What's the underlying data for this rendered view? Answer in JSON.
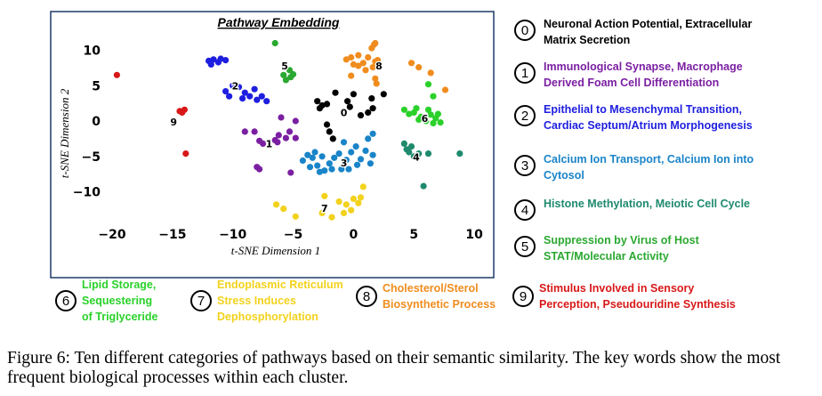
{
  "chart_data": {
    "type": "scatter",
    "title": "Pathway Embedding",
    "xlabel": "t-SNE Dimension 1",
    "ylabel": "t-SNE Dimension 2",
    "xlim": [
      -21,
      11
    ],
    "ylim": [
      -14,
      12
    ],
    "xticks": [
      -20,
      -15,
      -10,
      -5,
      0,
      5,
      10
    ],
    "yticks": [
      10,
      5,
      0,
      -5,
      -10
    ],
    "grid": false,
    "legend_placement": "right and bottom",
    "series": [
      {
        "id": 0,
        "color": "#000000",
        "label": {
          "text": "0",
          "x": -0.8,
          "y": 1.2
        },
        "points": [
          [
            -3.0,
            2.8
          ],
          [
            -2.6,
            2.2
          ],
          [
            -2.2,
            2.4
          ],
          [
            -2.8,
            1.8
          ],
          [
            -1.5,
            4.0
          ],
          [
            0.0,
            3.8
          ],
          [
            1.5,
            3.2
          ],
          [
            2.5,
            3.8
          ],
          [
            -0.5,
            2.8
          ],
          [
            1.2,
            1.2
          ],
          [
            1.6,
            1.8
          ],
          [
            0.6,
            0.8
          ],
          [
            -0.3,
            2.0
          ],
          [
            -2.0,
            -1.5
          ],
          [
            -2.2,
            -0.5
          ],
          [
            -1.7,
            -2.5
          ]
        ]
      },
      {
        "id": 1,
        "color": "#7b1fa2",
        "label": {
          "text": "1",
          "x": -7.0,
          "y": -3.2
        },
        "points": [
          [
            -9.0,
            -1.5
          ],
          [
            -8.2,
            -1.5
          ],
          [
            -7.8,
            -2.8
          ],
          [
            -7.5,
            -3.2
          ],
          [
            -6.5,
            -2.7
          ],
          [
            -6.2,
            -2.0
          ],
          [
            -5.6,
            -2.4
          ],
          [
            -4.8,
            -2.4
          ],
          [
            -5.3,
            -1.5
          ],
          [
            -6.0,
            0.5
          ],
          [
            -4.8,
            0.0
          ],
          [
            -8.0,
            -6.5
          ],
          [
            -7.8,
            -6.8
          ],
          [
            -5.2,
            -7.3
          ],
          [
            -6.3,
            -3.0
          ]
        ]
      },
      {
        "id": 2,
        "color": "#1e1ee0",
        "label": {
          "text": "2",
          "x": -9.8,
          "y": 5.0
        },
        "points": [
          [
            -12.0,
            8.5
          ],
          [
            -11.6,
            8.7
          ],
          [
            -11.2,
            8.3
          ],
          [
            -11.8,
            8.0
          ],
          [
            -11.0,
            8.8
          ],
          [
            -10.6,
            8.6
          ],
          [
            -10.0,
            5.0
          ],
          [
            -9.5,
            4.8
          ],
          [
            -9.0,
            4.0
          ],
          [
            -8.6,
            3.5
          ],
          [
            -8.0,
            3.0
          ],
          [
            -7.6,
            3.5
          ],
          [
            -8.2,
            4.5
          ],
          [
            -9.2,
            3.2
          ],
          [
            -10.6,
            4.2
          ],
          [
            -10.3,
            3.5
          ],
          [
            -7.2,
            2.8
          ]
        ]
      },
      {
        "id": 3,
        "color": "#1a84c8",
        "label": {
          "text": "3",
          "x": -0.8,
          "y": -5.9
        },
        "points": [
          [
            -4.2,
            -5.6
          ],
          [
            -3.6,
            -6.5
          ],
          [
            -3.4,
            -5.2
          ],
          [
            -3.0,
            -6.3
          ],
          [
            -2.6,
            -5.0
          ],
          [
            -2.4,
            -7.0
          ],
          [
            -2.0,
            -6.0
          ],
          [
            -1.6,
            -5.2
          ],
          [
            -1.2,
            -4.6
          ],
          [
            -1.0,
            -6.8
          ],
          [
            -0.6,
            -5.5
          ],
          [
            -0.2,
            -4.4
          ],
          [
            0.3,
            -6.2
          ],
          [
            0.6,
            -5.4
          ],
          [
            1.0,
            -4.2
          ],
          [
            1.4,
            -6.0
          ],
          [
            1.6,
            -4.8
          ],
          [
            1.2,
            -2.5
          ],
          [
            1.6,
            -1.8
          ],
          [
            -0.8,
            -3.0
          ],
          [
            -0.4,
            -6.8
          ],
          [
            0.2,
            -3.6
          ],
          [
            -2.8,
            -7.2
          ],
          [
            -3.8,
            -4.8
          ],
          [
            -3.2,
            -4.4
          ],
          [
            -1.8,
            -6.8
          ]
        ]
      },
      {
        "id": 4,
        "color": "#1f8a6e",
        "label": {
          "text": "4",
          "x": 5.2,
          "y": -5.1
        },
        "points": [
          [
            4.2,
            -3.2
          ],
          [
            4.4,
            -4.0
          ],
          [
            4.6,
            -4.4
          ],
          [
            4.8,
            -3.6
          ],
          [
            5.4,
            -4.6
          ],
          [
            5.0,
            -5.0
          ],
          [
            6.2,
            -4.6
          ],
          [
            8.8,
            -4.6
          ],
          [
            5.8,
            -9.2
          ]
        ]
      },
      {
        "id": 5,
        "color": "#2aa830",
        "label": {
          "text": "5",
          "x": -5.7,
          "y": 7.8
        },
        "points": [
          [
            -6.5,
            11.0
          ],
          [
            -5.8,
            6.5
          ],
          [
            -5.3,
            7.2
          ],
          [
            -5.2,
            6.2
          ],
          [
            -5.6,
            5.8
          ],
          [
            -5.0,
            6.6
          ]
        ]
      },
      {
        "id": 6,
        "color": "#2ad12a",
        "label": {
          "text": "6",
          "x": 5.9,
          "y": 0.4
        },
        "points": [
          [
            4.2,
            1.6
          ],
          [
            4.6,
            1.0
          ],
          [
            5.0,
            1.2
          ],
          [
            5.2,
            1.8
          ],
          [
            5.6,
            0.6
          ],
          [
            6.0,
            0.0
          ],
          [
            6.4,
            0.9
          ],
          [
            6.6,
            -0.3
          ],
          [
            6.8,
            0.4
          ],
          [
            7.2,
            -0.2
          ],
          [
            7.0,
            1.0
          ],
          [
            6.2,
            1.6
          ],
          [
            5.4,
            0.2
          ],
          [
            6.2,
            5.2
          ],
          [
            6.6,
            3.5
          ]
        ]
      },
      {
        "id": 7,
        "color": "#f2d21c",
        "label": {
          "text": "7",
          "x": -2.4,
          "y": -12.3
        },
        "points": [
          [
            -6.4,
            -11.8
          ],
          [
            -5.8,
            -12.4
          ],
          [
            -4.8,
            -13.5
          ],
          [
            -2.4,
            -10.6
          ],
          [
            -1.8,
            -13.6
          ],
          [
            -1.2,
            -11.4
          ],
          [
            -0.6,
            -11.8
          ],
          [
            -0.2,
            -12.6
          ],
          [
            0.4,
            -11.6
          ],
          [
            0.0,
            -11.0
          ],
          [
            0.6,
            -10.8
          ],
          [
            -0.8,
            -13.0
          ],
          [
            -2.6,
            -13.0
          ],
          [
            0.8,
            -9.3
          ]
        ]
      },
      {
        "id": 8,
        "color": "#f08c1e",
        "label": {
          "text": "8",
          "x": 2.1,
          "y": 7.8
        },
        "points": [
          [
            -0.6,
            8.7
          ],
          [
            -0.2,
            9.0
          ],
          [
            0.4,
            9.3
          ],
          [
            0.8,
            8.2
          ],
          [
            1.2,
            9.0
          ],
          [
            1.6,
            7.6
          ],
          [
            1.0,
            7.2
          ],
          [
            0.4,
            7.8
          ],
          [
            0.0,
            8.0
          ],
          [
            1.8,
            8.4
          ],
          [
            1.5,
            10.3
          ],
          [
            1.8,
            11.0
          ],
          [
            1.7,
            10.8
          ],
          [
            -0.2,
            6.4
          ],
          [
            1.8,
            6.0
          ],
          [
            1.9,
            5.3
          ],
          [
            4.8,
            8.2
          ],
          [
            5.4,
            7.6
          ],
          [
            6.4,
            6.8
          ],
          [
            7.6,
            4.4
          ],
          [
            2.0,
            8.6
          ]
        ]
      },
      {
        "id": 9,
        "color": "#d81818",
        "label": {
          "text": "9",
          "x": -14.9,
          "y": -0.1
        },
        "points": [
          [
            -19.6,
            6.5
          ],
          [
            -14.4,
            1.4
          ],
          [
            -14.0,
            1.6
          ],
          [
            -14.2,
            1.2
          ],
          [
            -13.9,
            -4.6
          ]
        ]
      }
    ]
  },
  "legend": [
    {
      "num": "0",
      "lines": [
        "Neuronal Action Potential, Extracellular",
        "Matrix Secretion"
      ],
      "color": "#000000"
    },
    {
      "num": "1",
      "lines": [
        "Immunological Synapse, Macrophage",
        "Derived Foam Cell Differentiation"
      ],
      "color": "#7b1fa2"
    },
    {
      "num": "2",
      "lines": [
        "Epithelial to Mesenchymal Transition,",
        "Cardiac Septum/Atrium Morphogenesis"
      ],
      "color": "#1e1ee0"
    },
    {
      "num": "3",
      "lines": [
        "Calcium Ion Transport, Calcium Ion into",
        "Cytosol"
      ],
      "color": "#1a84c8"
    },
    {
      "num": "4",
      "lines": [
        "Histone Methylation, Meiotic Cell Cycle"
      ],
      "color": "#1f8a6e"
    },
    {
      "num": "5",
      "lines": [
        "Suppression by Virus of Host",
        "STAT/Molecular Activity"
      ],
      "color": "#2aa830"
    },
    {
      "num": "6",
      "lines": [
        "Lipid Storage,",
        "Sequestering",
        "of Triglyceride"
      ],
      "color": "#2ad12a"
    },
    {
      "num": "7",
      "lines": [
        "Endoplasmic Reticulum",
        "Stress Induces",
        "Dephosphorylation"
      ],
      "color": "#f2d21c"
    },
    {
      "num": "8",
      "lines": [
        "Cholesterol/Sterol",
        "Biosynthetic Process"
      ],
      "color": "#f08c1e"
    },
    {
      "num": "9",
      "lines": [
        "Stimulus Involved in Sensory",
        "Perception, Pseudouridine Synthesis"
      ],
      "color": "#d81818"
    }
  ],
  "caption": "Figure 6: Ten different categories of pathways based on their semantic similarity. The key words show the most frequent biological processes within each cluster."
}
